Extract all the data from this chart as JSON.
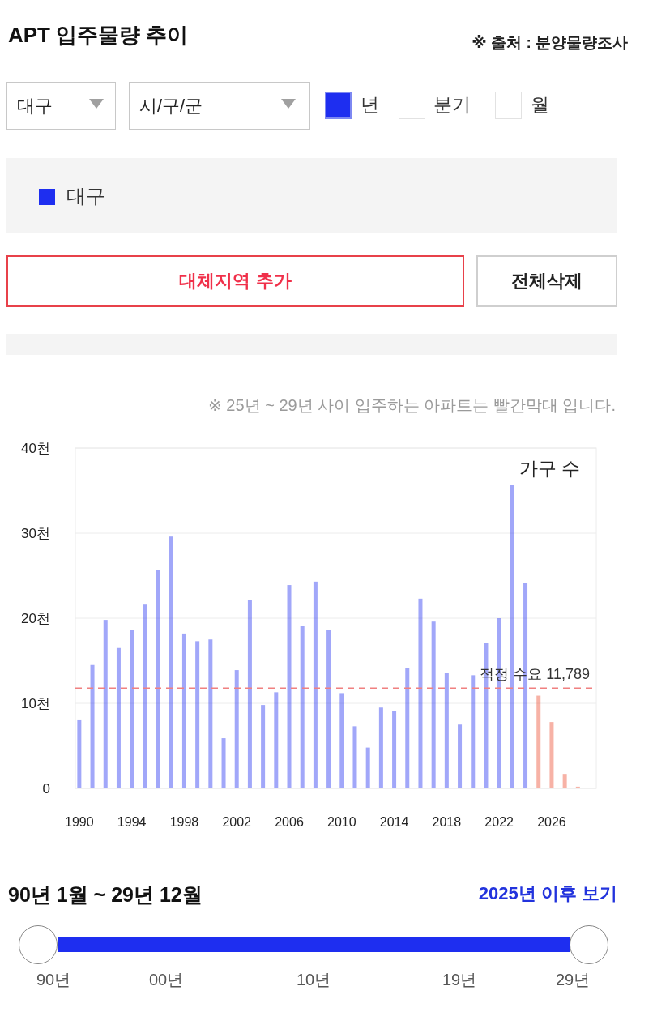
{
  "chart_data": {
    "type": "bar",
    "title": "APT 입주물량 추이",
    "ylabel": "가구 수",
    "annotations": [
      "※ 출처 : 분양물량조사",
      "대구",
      "시/구/군",
      "년",
      "분기",
      "월",
      "대체지역 추가",
      "전체삭제",
      "※ 25년 ~ 29년 사이 입주하는 아파트는 빨간막대 입니다.",
      "90년 1월 ~ 29년 12월",
      "2025년 이후 보기",
      "90년",
      "00년",
      "10년",
      "19년",
      "29년"
    ],
    "x": [
      1990,
      1991,
      1992,
      1993,
      1994,
      1995,
      1996,
      1997,
      1998,
      1999,
      2000,
      2001,
      2002,
      2003,
      2004,
      2005,
      2006,
      2007,
      2008,
      2009,
      2010,
      2011,
      2012,
      2013,
      2014,
      2015,
      2016,
      2017,
      2018,
      2019,
      2020,
      2021,
      2022,
      2023,
      2024,
      2025,
      2026,
      2027,
      2028
    ],
    "series": [
      {
        "name": "대구",
        "color": "#1e2ef0",
        "colors": [
          "#1e2ef0",
          "#1e2ef0",
          "#1e2ef0",
          "#1e2ef0",
          "#1e2ef0",
          "#1e2ef0",
          "#1e2ef0",
          "#1e2ef0",
          "#1e2ef0",
          "#1e2ef0",
          "#1e2ef0",
          "#1e2ef0",
          "#1e2ef0",
          "#1e2ef0",
          "#1e2ef0",
          "#1e2ef0",
          "#1e2ef0",
          "#1e2ef0",
          "#1e2ef0",
          "#1e2ef0",
          "#1e2ef0",
          "#1e2ef0",
          "#1e2ef0",
          "#1e2ef0",
          "#1e2ef0",
          "#1e2ef0",
          "#1e2ef0",
          "#1e2ef0",
          "#1e2ef0",
          "#1e2ef0",
          "#1e2ef0",
          "#1e2ef0",
          "#1e2ef0",
          "#1e2ef0",
          "#1e2ef0",
          "#ec472b",
          "#ec472b",
          "#ec472b",
          "#ec472b"
        ],
        "values": [
          8.1,
          14.5,
          19.8,
          16.5,
          18.6,
          21.6,
          25.7,
          29.6,
          18.2,
          17.3,
          17.5,
          5.9,
          13.9,
          22.1,
          9.8,
          11.3,
          23.9,
          19.1,
          24.3,
          18.6,
          11.2,
          7.3,
          4.8,
          9.5,
          9.1,
          14.1,
          22.3,
          19.6,
          13.6,
          7.5,
          13.3,
          17.1,
          20.0,
          35.7,
          24.1,
          10.9,
          7.8,
          1.7,
          0.2
        ]
      }
    ],
    "xlim": [
      1989.7,
      2029.4
    ],
    "xticks": [
      1990,
      1994,
      1998,
      2002,
      2006,
      2010,
      2014,
      2018,
      2022,
      2026
    ],
    "ylim": [
      0,
      40
    ],
    "yticks": [
      0,
      {
        "value": 10,
        "label": "10천"
      },
      {
        "value": 20,
        "label": "20천"
      },
      {
        "value": 30,
        "label": "30천"
      },
      {
        "value": 40,
        "label": "40천"
      }
    ],
    "ref_lines": [
      {
        "axis": "y",
        "value": 11.789,
        "label": "적정 수요 11,789",
        "color": "#f08080",
        "line_style": "dashed"
      }
    ],
    "grid": "y",
    "legend": "top"
  }
}
